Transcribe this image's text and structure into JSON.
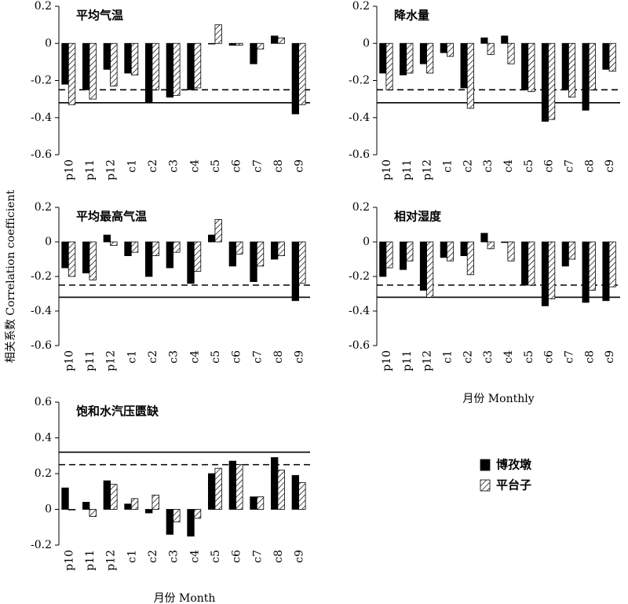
{
  "chart_data": [
    {
      "type": "bar",
      "title": "平均气温",
      "categories": [
        "p10",
        "p11",
        "p12",
        "c1",
        "c2",
        "c3",
        "c4",
        "c5",
        "c6",
        "c7",
        "c8",
        "c9"
      ],
      "series": [
        {
          "name": "博孜墩",
          "color": "#000000",
          "pattern": "solid",
          "values": [
            -0.22,
            -0.25,
            -0.14,
            -0.16,
            -0.32,
            -0.29,
            -0.25,
            0.0,
            -0.01,
            -0.11,
            0.04,
            -0.38
          ]
        },
        {
          "name": "平台子",
          "color": "#000000",
          "pattern": "hatch",
          "values": [
            -0.33,
            -0.3,
            -0.23,
            -0.17,
            -0.25,
            -0.28,
            -0.24,
            0.1,
            -0.01,
            -0.03,
            0.03,
            -0.33
          ]
        }
      ],
      "ylim": [
        -0.6,
        0.2
      ],
      "yticks": [
        0.2,
        0,
        -0.2,
        -0.4,
        -0.6
      ],
      "reference_lines": [
        {
          "value": -0.32,
          "style": "solid"
        },
        {
          "value": -0.25,
          "style": "dashed"
        }
      ]
    },
    {
      "type": "bar",
      "title": "降水量",
      "categories": [
        "p10",
        "p11",
        "p12",
        "c1",
        "c2",
        "c3",
        "c4",
        "c5",
        "c6",
        "c7",
        "c8",
        "c9"
      ],
      "series": [
        {
          "name": "博孜墩",
          "color": "#000000",
          "pattern": "solid",
          "values": [
            -0.16,
            -0.17,
            -0.11,
            -0.05,
            -0.24,
            0.03,
            0.04,
            -0.25,
            -0.42,
            -0.25,
            -0.36,
            -0.14
          ]
        },
        {
          "name": "平台子",
          "color": "#000000",
          "pattern": "hatch",
          "values": [
            -0.25,
            -0.16,
            -0.16,
            -0.07,
            -0.35,
            -0.06,
            -0.11,
            -0.26,
            -0.41,
            -0.29,
            -0.25,
            -0.15
          ]
        }
      ],
      "ylim": [
        -0.6,
        0.2
      ],
      "yticks": [
        0.2,
        0,
        -0.2,
        -0.4,
        -0.6
      ],
      "reference_lines": [
        {
          "value": -0.32,
          "style": "solid"
        },
        {
          "value": -0.25,
          "style": "dashed"
        }
      ]
    },
    {
      "type": "bar",
      "title": "平均最高气温",
      "y_label": "相关系数 Correlation coefficient",
      "categories": [
        "p10",
        "p11",
        "p12",
        "c1",
        "c2",
        "c3",
        "c4",
        "c5",
        "c6",
        "c7",
        "c8",
        "c9"
      ],
      "series": [
        {
          "name": "博孜墩",
          "color": "#000000",
          "pattern": "solid",
          "values": [
            -0.15,
            -0.18,
            0.04,
            -0.08,
            -0.2,
            -0.15,
            -0.24,
            0.04,
            -0.14,
            -0.23,
            -0.1,
            -0.34
          ]
        },
        {
          "name": "平台子",
          "color": "#000000",
          "pattern": "hatch",
          "values": [
            -0.2,
            -0.22,
            -0.02,
            -0.06,
            -0.08,
            -0.06,
            -0.17,
            0.13,
            -0.07,
            -0.14,
            -0.08,
            -0.24
          ]
        }
      ],
      "ylim": [
        -0.6,
        0.2
      ],
      "yticks": [
        0.2,
        0,
        -0.2,
        -0.4,
        -0.6
      ],
      "reference_lines": [
        {
          "value": -0.32,
          "style": "solid"
        },
        {
          "value": -0.25,
          "style": "dashed"
        }
      ]
    },
    {
      "type": "bar",
      "title": "相对湿度",
      "x_label": "月份 Monthly",
      "categories": [
        "p10",
        "p11",
        "p12",
        "c1",
        "c2",
        "c3",
        "c4",
        "c5",
        "c6",
        "c7",
        "c8",
        "c9"
      ],
      "series": [
        {
          "name": "博孜墩",
          "color": "#000000",
          "pattern": "solid",
          "values": [
            -0.2,
            -0.16,
            -0.28,
            -0.09,
            -0.08,
            0.05,
            0.0,
            -0.25,
            -0.37,
            -0.14,
            -0.35,
            -0.34
          ]
        },
        {
          "name": "平台子",
          "color": "#000000",
          "pattern": "hatch",
          "values": [
            -0.15,
            -0.11,
            -0.32,
            -0.11,
            -0.19,
            -0.04,
            -0.11,
            -0.25,
            -0.33,
            -0.1,
            -0.28,
            -0.26
          ]
        }
      ],
      "ylim": [
        -0.6,
        0.2
      ],
      "yticks": [
        0.2,
        0,
        -0.2,
        -0.4,
        -0.6
      ],
      "reference_lines": [
        {
          "value": -0.32,
          "style": "solid"
        },
        {
          "value": -0.25,
          "style": "dashed"
        }
      ]
    },
    {
      "type": "bar",
      "title": "饱和水汽压匮缺",
      "x_label": "月份 Month",
      "categories": [
        "p10",
        "p11",
        "p12",
        "c1",
        "c2",
        "c3",
        "c4",
        "c5",
        "c6",
        "c7",
        "c8",
        "c9"
      ],
      "series": [
        {
          "name": "博孜墩",
          "color": "#000000",
          "pattern": "solid",
          "values": [
            0.12,
            0.04,
            0.16,
            0.03,
            -0.02,
            -0.14,
            -0.15,
            0.2,
            0.27,
            0.07,
            0.29,
            0.19
          ]
        },
        {
          "name": "平台子",
          "color": "#000000",
          "pattern": "hatch",
          "values": [
            0.0,
            -0.04,
            0.14,
            0.06,
            0.08,
            -0.07,
            -0.05,
            0.23,
            0.25,
            0.07,
            0.22,
            0.15
          ]
        }
      ],
      "ylim": [
        -0.2,
        0.6
      ],
      "yticks": [
        0.6,
        0.4,
        0.2,
        0,
        -0.2
      ],
      "reference_lines": [
        {
          "value": 0.32,
          "style": "solid"
        },
        {
          "value": 0.25,
          "style": "dashed"
        }
      ],
      "legend": "right"
    }
  ]
}
